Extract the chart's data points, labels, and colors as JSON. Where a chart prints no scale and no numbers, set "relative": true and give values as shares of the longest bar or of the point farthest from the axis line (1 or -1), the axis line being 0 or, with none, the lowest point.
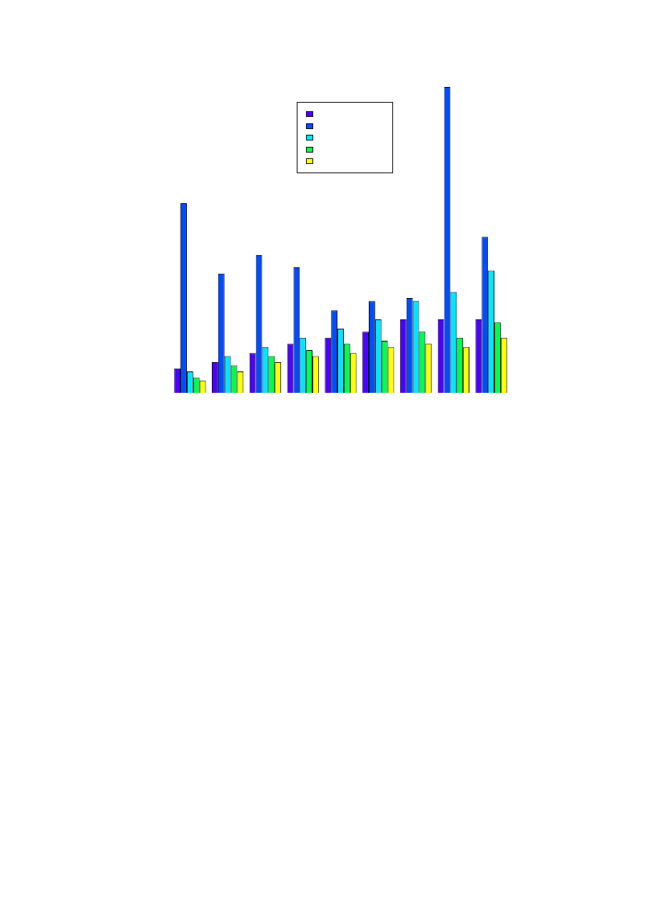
{
  "chart_data": {
    "type": "bar",
    "relative": true,
    "grid": false,
    "categories": [
      null,
      null,
      null,
      null,
      null,
      null,
      null,
      null,
      null
    ],
    "series": [
      {
        "color": "#4c00ff",
        "values": [
          0.08,
          0.1,
          0.13,
          0.16,
          0.18,
          0.2,
          0.24,
          0.24,
          0.24
        ]
      },
      {
        "color": "#004cff",
        "values": [
          0.62,
          0.39,
          0.45,
          0.41,
          0.27,
          0.3,
          0.31,
          1,
          0.51
        ]
      },
      {
        "color": "#00e5ff",
        "values": [
          0.07,
          0.12,
          0.15,
          0.18,
          0.21,
          0.24,
          0.3,
          0.33,
          0.4
        ]
      },
      {
        "color": "#00ff4d",
        "values": [
          0.05,
          0.09,
          0.12,
          0.14,
          0.16,
          0.17,
          0.2,
          0.18,
          0.23
        ]
      },
      {
        "color": "#ffff00",
        "values": [
          0.04,
          0.07,
          0.1,
          0.12,
          0.13,
          0.15,
          0.16,
          0.15,
          0.18
        ]
      }
    ]
  }
}
